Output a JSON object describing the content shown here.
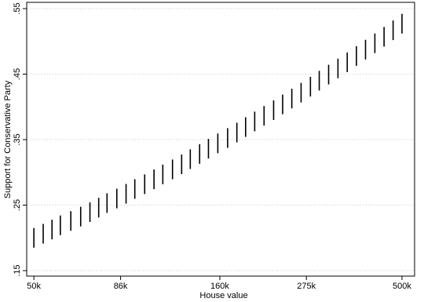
{
  "chart_data": {
    "type": "rangebar",
    "xlabel": "House value",
    "ylabel": "Support for Conservative Party",
    "xscale": "log",
    "color": "#000000",
    "grid": true,
    "x": [
      50000,
      53000,
      56000,
      59000,
      63000,
      67000,
      71000,
      75000,
      79000,
      84000,
      89000,
      94000,
      100000,
      106000,
      112000,
      119000,
      126000,
      133000,
      141000,
      149000,
      158000,
      168000,
      178000,
      188000,
      199000,
      211000,
      224000,
      237000,
      251000,
      266000,
      282000,
      298000,
      316000,
      335000,
      355000,
      376000,
      398000,
      422000,
      447000,
      473000,
      500000
    ],
    "low": [
      0.185,
      0.1913,
      0.1977,
      0.2042,
      0.2108,
      0.2175,
      0.2242,
      0.2311,
      0.2381,
      0.2451,
      0.2523,
      0.2596,
      0.2669,
      0.2744,
      0.2819,
      0.2896,
      0.2973,
      0.3052,
      0.3131,
      0.3211,
      0.3293,
      0.3375,
      0.3458,
      0.3542,
      0.3627,
      0.3713,
      0.38,
      0.3888,
      0.3977,
      0.4067,
      0.4158,
      0.425,
      0.4343,
      0.4437,
      0.4531,
      0.4627,
      0.4724,
      0.4821,
      0.492,
      0.502,
      0.512
    ],
    "high": [
      0.215,
      0.2213,
      0.2277,
      0.2342,
      0.2408,
      0.2475,
      0.2542,
      0.2611,
      0.2681,
      0.2751,
      0.2823,
      0.2896,
      0.2969,
      0.3044,
      0.3119,
      0.3196,
      0.3273,
      0.3352,
      0.3431,
      0.3511,
      0.3593,
      0.3675,
      0.3758,
      0.3842,
      0.3927,
      0.4013,
      0.41,
      0.4188,
      0.4277,
      0.4367,
      0.4458,
      0.455,
      0.4643,
      0.4737,
      0.4831,
      0.4927,
      0.5024,
      0.5121,
      0.522,
      0.532,
      0.542
    ],
    "xlim": [
      47800,
      541000
    ],
    "xticks": [
      {
        "value": 50000,
        "label": "50k"
      },
      {
        "value": 86000,
        "label": "86k"
      },
      {
        "value": 160000,
        "label": "160k"
      },
      {
        "value": 275000,
        "label": "275k"
      },
      {
        "value": 500000,
        "label": "500k"
      }
    ],
    "ylim": [
      0.1416,
      0.5596
    ],
    "yticks": [
      {
        "value": 0.15,
        "label": ".15"
      },
      {
        "value": 0.25,
        "label": ".25"
      },
      {
        "value": 0.35,
        "label": ".35"
      },
      {
        "value": 0.45,
        "label": ".45"
      },
      {
        "value": 0.55,
        "label": ".55"
      }
    ]
  }
}
